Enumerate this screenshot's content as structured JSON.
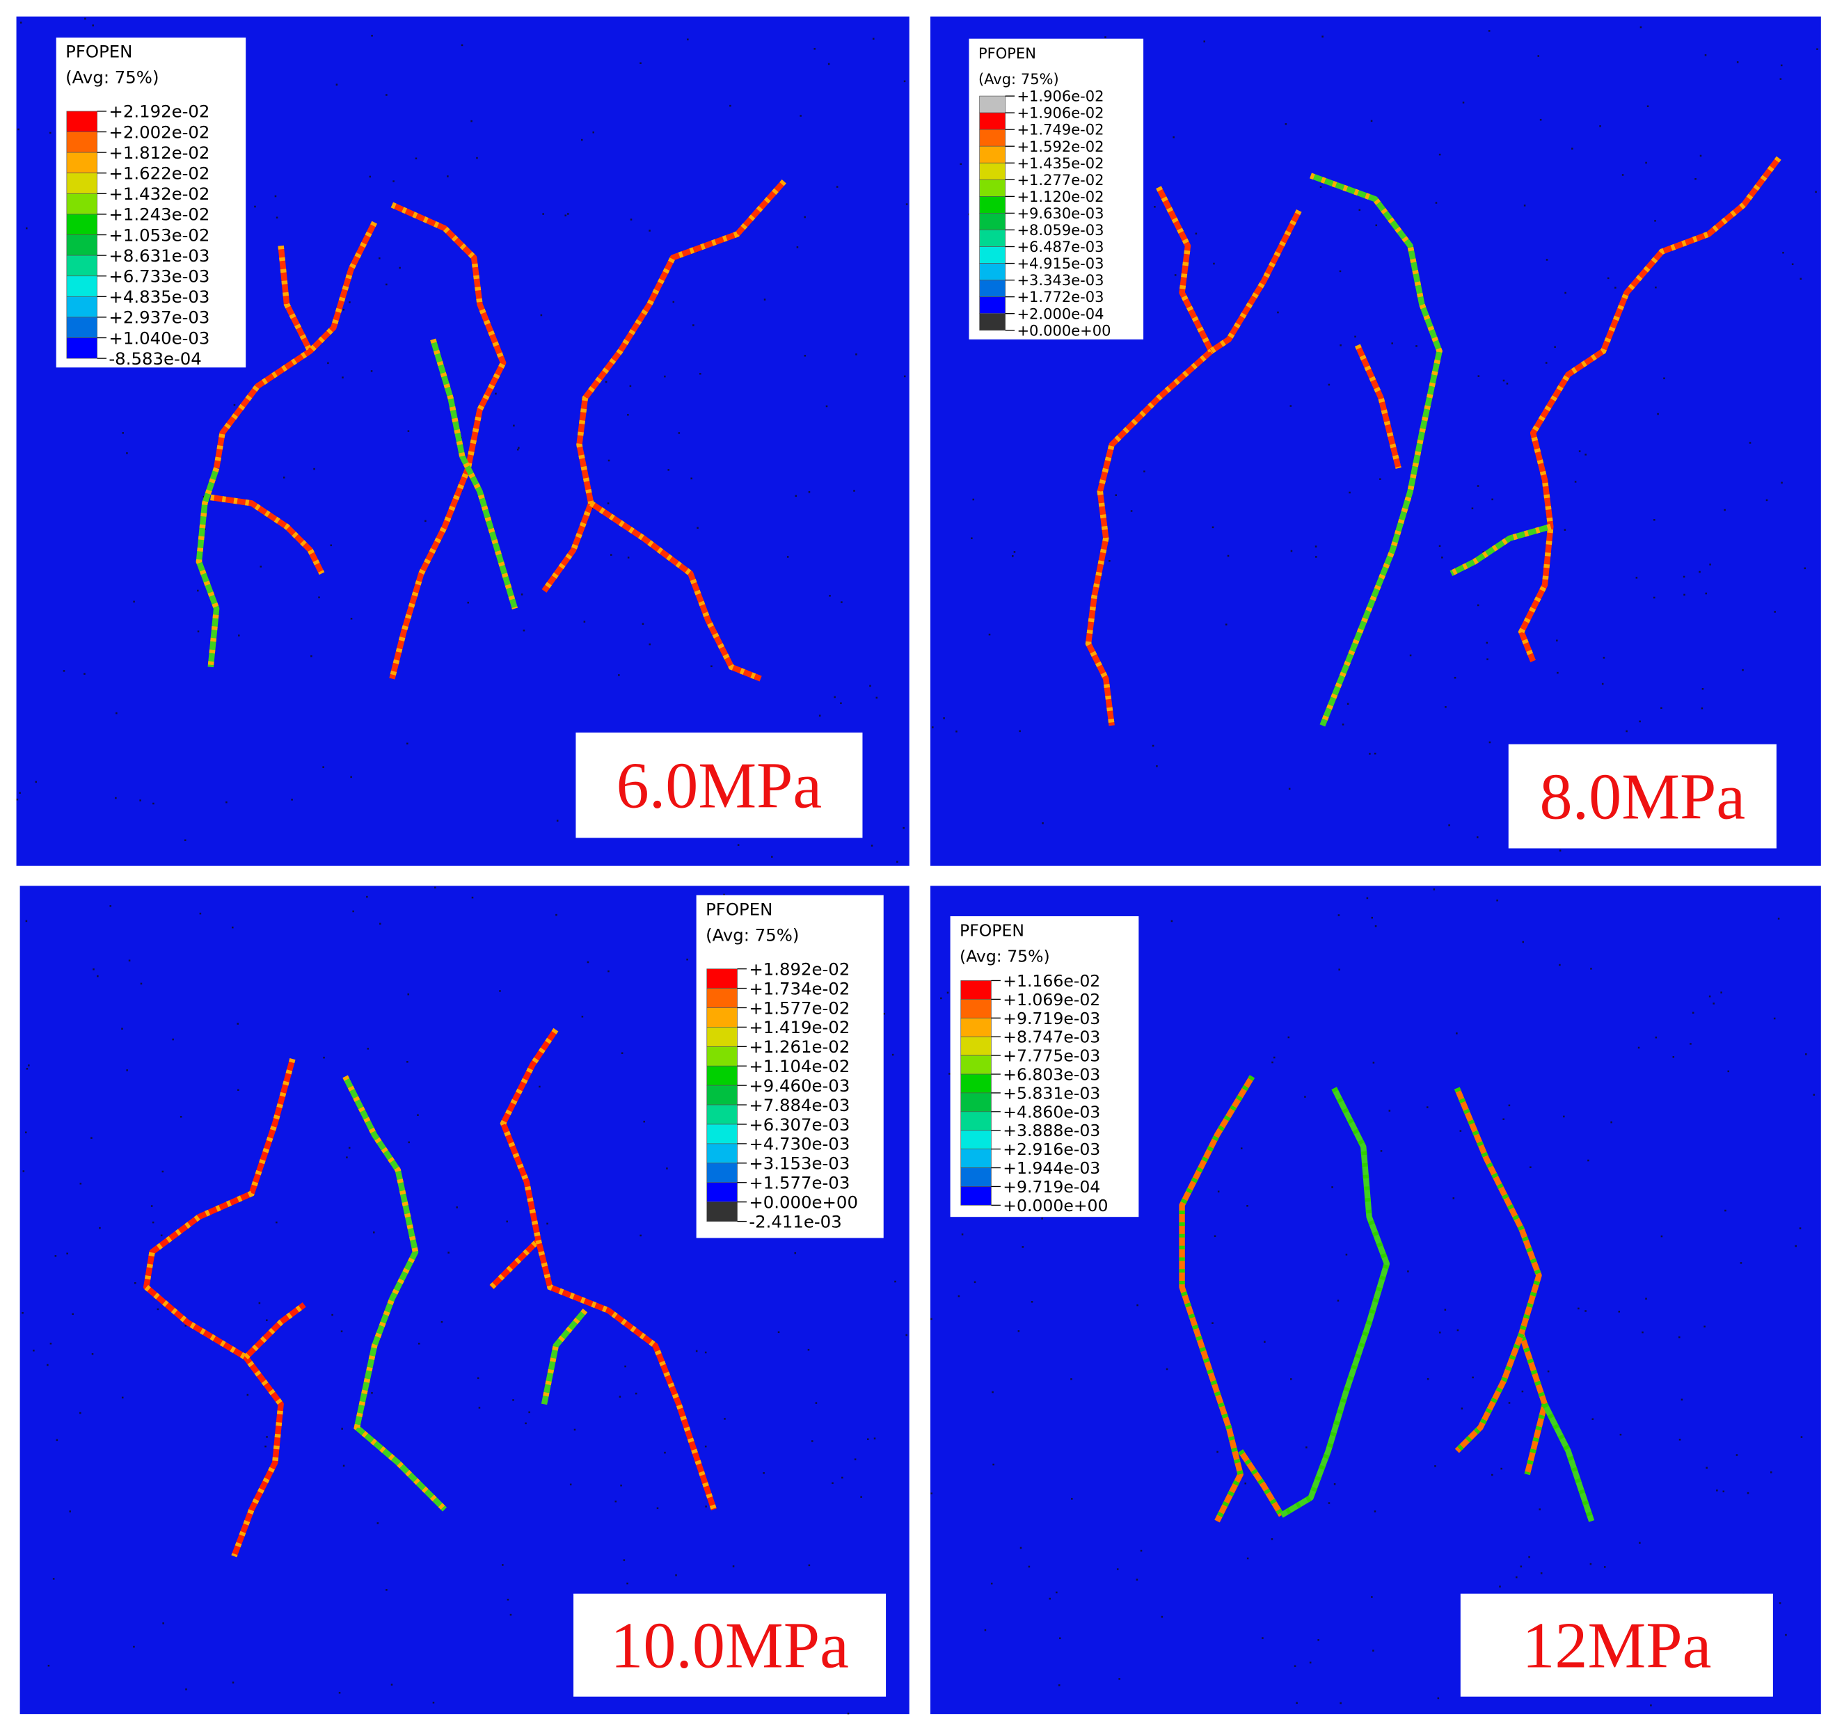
{
  "panels": [
    {
      "label": "6.0MPa",
      "legend": {
        "title": "PFOPEN",
        "subtitle": "(Avg: 75%)",
        "levels": [
          "+2.192e-02",
          "+2.002e-02",
          "+1.812e-02",
          "+1.622e-02",
          "+1.432e-02",
          "+1.243e-02",
          "+1.053e-02",
          "+8.631e-03",
          "+6.733e-03",
          "+4.835e-03",
          "+2.937e-03",
          "+1.040e-03",
          "-8.583e-04"
        ],
        "colors": [
          "#ff0000",
          "#ff6600",
          "#ffaa00",
          "#d8d800",
          "#80e000",
          "#00d000",
          "#00c040",
          "#00d890",
          "#00e8e0",
          "#00b8f0",
          "#0070e0",
          "#0000ff"
        ]
      }
    },
    {
      "label": "8.0MPa",
      "legend": {
        "title": "PFOPEN",
        "subtitle": "(Avg: 75%)",
        "levels": [
          "+1.906e-02",
          "+1.906e-02",
          "+1.749e-02",
          "+1.592e-02",
          "+1.435e-02",
          "+1.277e-02",
          "+1.120e-02",
          "+9.630e-03",
          "+8.059e-03",
          "+6.487e-03",
          "+4.915e-03",
          "+3.343e-03",
          "+1.772e-03",
          "+2.000e-04",
          "+0.000e+00"
        ],
        "colors": [
          "#c0c0c0",
          "#ff0000",
          "#ff6600",
          "#ffaa00",
          "#d8d800",
          "#80e000",
          "#00d000",
          "#00c040",
          "#00d890",
          "#00e8e0",
          "#00b8f0",
          "#0070e0",
          "#0000ff",
          "#333333"
        ]
      }
    },
    {
      "label": "10.0MPa",
      "legend": {
        "title": "PFOPEN",
        "subtitle": "(Avg: 75%)",
        "levels": [
          "+1.892e-02",
          "+1.734e-02",
          "+1.577e-02",
          "+1.419e-02",
          "+1.261e-02",
          "+1.104e-02",
          "+9.460e-03",
          "+7.884e-03",
          "+6.307e-03",
          "+4.730e-03",
          "+3.153e-03",
          "+1.577e-03",
          "+0.000e+00",
          "-2.411e-03"
        ],
        "colors": [
          "#ff0000",
          "#ff6600",
          "#ffaa00",
          "#d8d800",
          "#80e000",
          "#00d000",
          "#00c040",
          "#00d890",
          "#00e8e0",
          "#00b8f0",
          "#0070e0",
          "#0000ff",
          "#333333"
        ]
      }
    },
    {
      "label": "12MPa",
      "legend": {
        "title": "PFOPEN",
        "subtitle": "(Avg: 75%)",
        "levels": [
          "+1.166e-02",
          "+1.069e-02",
          "+9.719e-03",
          "+8.747e-03",
          "+7.775e-03",
          "+6.803e-03",
          "+5.831e-03",
          "+4.860e-03",
          "+3.888e-03",
          "+2.916e-03",
          "+1.944e-03",
          "+9.719e-04",
          "+0.000e+00"
        ],
        "colors": [
          "#ff0000",
          "#ff6600",
          "#ffaa00",
          "#d8d800",
          "#80e000",
          "#00d000",
          "#00c040",
          "#00d890",
          "#00e8e0",
          "#00b8f0",
          "#0070e0",
          "#0000ff"
        ]
      }
    }
  ]
}
